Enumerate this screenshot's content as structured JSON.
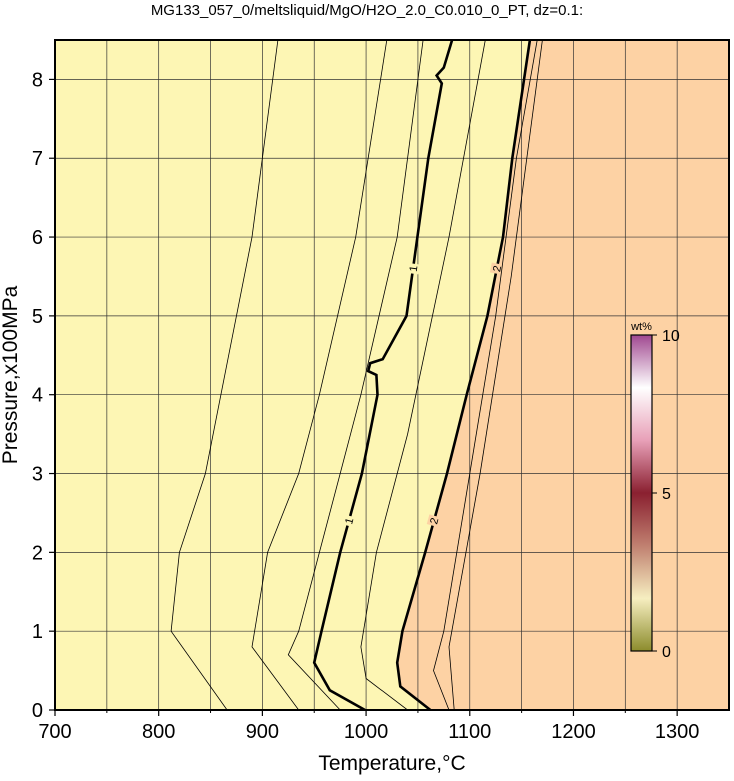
{
  "chart_data": {
    "type": "contour",
    "title": "MG133_057_0/meltsliquid/MgO/H2O_2.0_C0.010_0_PT, dz=0.1:",
    "x_label": "Temperature,°C",
    "y_label": "Pressure,x100MPa",
    "xlim": [
      700,
      1350
    ],
    "ylim": [
      0,
      8.5
    ],
    "xticks": [
      700,
      800,
      900,
      1000,
      1100,
      1200,
      1300
    ],
    "yticks": [
      0,
      1,
      2,
      3,
      4,
      5,
      6,
      7,
      8
    ],
    "xminorticks": [
      750,
      850,
      950,
      1050,
      1150,
      1250
    ],
    "grid": true,
    "low_color": "#fdf6b4",
    "high_color": "#fdd2a4",
    "contours": [
      {
        "x": [
          866,
          812,
          820,
          845,
          860,
          890,
          915
        ],
        "y": [
          0,
          1,
          2,
          3,
          4,
          6,
          8.5
        ]
      },
      {
        "x": [
          935,
          890,
          905,
          935,
          955,
          990,
          1020
        ],
        "y": [
          0,
          0.8,
          2,
          3,
          4,
          6,
          8.5
        ]
      },
      {
        "x": [
          975,
          925,
          935,
          955,
          975,
          995,
          1030,
          1055
        ],
        "y": [
          0,
          0.7,
          1,
          2,
          3,
          4,
          6,
          8.5
        ]
      },
      {
        "level": 1,
        "x": [
          999,
          965,
          950,
          957,
          975,
          996,
          1011,
          1010,
          1002,
          1004,
          1016,
          1039,
          1060,
          1073,
          1068,
          1075,
          1083
        ],
        "y": [
          0,
          0.25,
          0.6,
          1,
          2,
          3,
          4,
          4.25,
          4.3,
          4.4,
          4.45,
          5,
          7,
          7.95,
          8.05,
          8.15,
          8.5
        ]
      },
      {
        "x": [
          1040,
          1000,
          995,
          1010,
          1040,
          1080,
          1115
        ],
        "y": [
          0,
          0.4,
          0.8,
          2,
          3.5,
          6,
          8.5
        ]
      },
      {
        "level": 2,
        "x": [
          1062,
          1033,
          1030,
          1035,
          1057,
          1078,
          1097,
          1117,
          1132,
          1141,
          1158
        ],
        "y": [
          0,
          0.3,
          0.6,
          1,
          2,
          3,
          4,
          5,
          6,
          7,
          8.5
        ]
      },
      {
        "x": [
          1080,
          1065,
          1075,
          1100,
          1125,
          1145,
          1165
        ],
        "y": [
          0,
          0.5,
          1,
          3,
          5,
          7,
          8.5
        ]
      },
      {
        "x": [
          1085,
          1080,
          1110,
          1140,
          1170
        ],
        "y": [
          0,
          0.8,
          3,
          5.5,
          8.5
        ]
      }
    ],
    "colorbar": {
      "label": "wt%",
      "lim": [
        0,
        10
      ],
      "ticks": [
        0,
        5,
        10
      ],
      "colors": [
        "#8c8c2c",
        "#f6eec0",
        "#c08070",
        "#8a2030",
        "#e8a0b8",
        "#ffffff",
        "#a04890"
      ]
    }
  }
}
